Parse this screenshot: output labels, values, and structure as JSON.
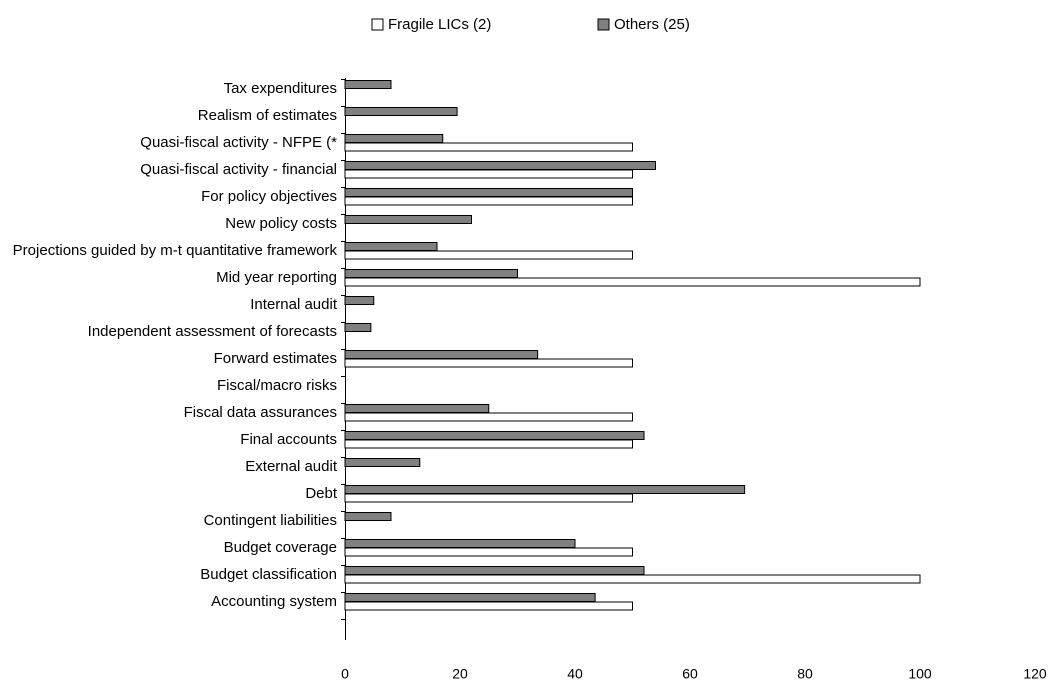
{
  "chart_data": {
    "type": "hbar",
    "categories": [
      "Tax expenditures",
      "Realism of estimates",
      "Quasi-fiscal activity - NFPE (*",
      "Quasi-fiscal activity - financial",
      "For policy objectives",
      "New policy costs",
      "Projections guided by m-t quantitative framework",
      "Mid year reporting",
      "Internal audit",
      "Independent assessment of forecasts",
      "Forward estimates",
      "Fiscal/macro risks",
      "Fiscal data assurances",
      "Final accounts",
      "External audit",
      "Debt",
      "Contingent liabilities",
      "Budget coverage",
      "Budget classification",
      "Accounting system"
    ],
    "series": [
      {
        "name": "Fragile LICs (2)",
        "color": "#ffffff",
        "values": [
          0,
          0,
          50,
          50,
          50,
          0,
          50,
          100,
          0,
          0,
          50,
          0,
          50,
          50,
          0,
          50,
          0,
          50,
          100,
          50
        ]
      },
      {
        "name": "Others (25)",
        "color": "#808080",
        "values": [
          8,
          19.5,
          17,
          54,
          50,
          22,
          16,
          30,
          5,
          4.5,
          33.5,
          0,
          25,
          52,
          13,
          69.5,
          8,
          40,
          52,
          43.5
        ]
      }
    ],
    "xlim": [
      0,
      120
    ],
    "xticks": [
      0,
      20,
      40,
      60,
      80,
      100,
      120
    ],
    "grid": false
  }
}
